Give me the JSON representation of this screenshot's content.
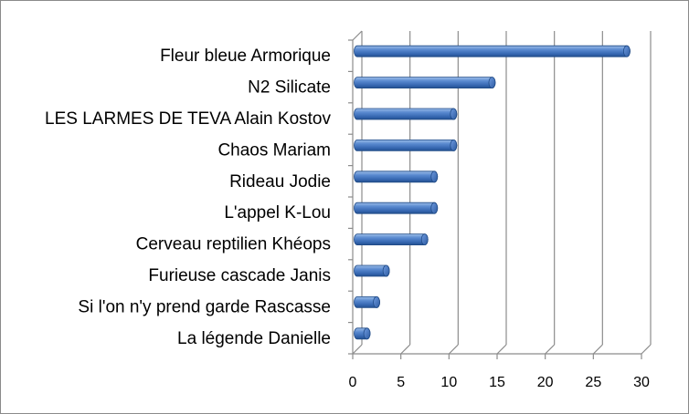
{
  "chart_data": {
    "type": "bar",
    "orientation": "horizontal",
    "style": "3d-cylinder",
    "categories": [
      "Fleur bleue Armorique",
      "N2 Silicate",
      "LES LARMES DE TEVA Alain Kostov",
      "Chaos Mariam",
      "Rideau Jodie",
      "L'appel  K-Lou",
      "Cerveau reptilien Khéops",
      "Furieuse cascade Janis",
      "Si l'on n'y prend garde Rascasse",
      "La légende Danielle"
    ],
    "values": [
      28,
      14,
      10,
      10,
      8,
      8,
      7,
      3,
      2,
      1
    ],
    "xlim": [
      0,
      30
    ],
    "xticks": [
      "0",
      "5",
      "10",
      "15",
      "20",
      "25",
      "30"
    ],
    "grid": true,
    "legend": false,
    "bar_color": "#4f81bd"
  }
}
